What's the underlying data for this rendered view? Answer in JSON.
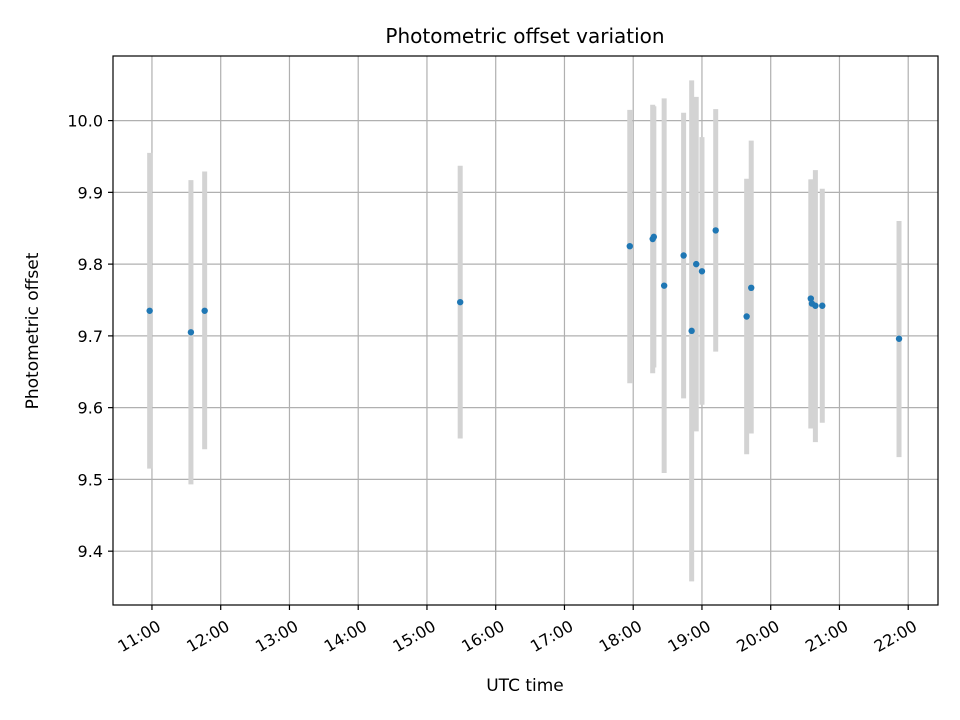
{
  "chart_data": {
    "type": "scatter",
    "title": "Photometric offset variation",
    "xlabel": "UTC time",
    "ylabel": "Photometric offset",
    "xlim": [
      "10:26",
      "22:26"
    ],
    "ylim": [
      9.325,
      10.09
    ],
    "xticks": [
      "11:00",
      "12:00",
      "13:00",
      "14:00",
      "15:00",
      "16:00",
      "17:00",
      "18:00",
      "19:00",
      "20:00",
      "21:00",
      "22:00"
    ],
    "yticks": [
      9.4,
      9.5,
      9.6,
      9.7,
      9.8,
      9.9,
      10.0
    ],
    "ytick_labels": [
      "9.4",
      "9.5",
      "9.6",
      "9.7",
      "9.8",
      "9.9",
      "10.0"
    ],
    "grid": true,
    "point_color": "#1f77b4",
    "errorbar_color": "#d3d3d3",
    "points": [
      {
        "t": "10:58",
        "y": 9.735,
        "lo": 9.515,
        "hi": 9.955
      },
      {
        "t": "11:34",
        "y": 9.705,
        "lo": 9.493,
        "hi": 9.917
      },
      {
        "t": "11:46",
        "y": 9.735,
        "lo": 9.542,
        "hi": 9.929
      },
      {
        "t": "15:29",
        "y": 9.747,
        "lo": 9.557,
        "hi": 9.937
      },
      {
        "t": "17:57",
        "y": 9.825,
        "lo": 9.634,
        "hi": 10.015
      },
      {
        "t": "18:17",
        "y": 9.835,
        "lo": 9.648,
        "hi": 10.022
      },
      {
        "t": "18:18",
        "y": 9.838,
        "lo": 9.656,
        "hi": 10.02
      },
      {
        "t": "18:27",
        "y": 9.77,
        "lo": 9.509,
        "hi": 10.031
      },
      {
        "t": "18:44",
        "y": 9.812,
        "lo": 9.613,
        "hi": 10.011
      },
      {
        "t": "18:51",
        "y": 9.707,
        "lo": 9.358,
        "hi": 10.056
      },
      {
        "t": "18:55",
        "y": 9.8,
        "lo": 9.567,
        "hi": 10.033
      },
      {
        "t": "19:00",
        "y": 9.79,
        "lo": 9.604,
        "hi": 9.977
      },
      {
        "t": "19:12",
        "y": 9.847,
        "lo": 9.678,
        "hi": 10.016
      },
      {
        "t": "19:39",
        "y": 9.727,
        "lo": 9.535,
        "hi": 9.919
      },
      {
        "t": "19:43",
        "y": 9.767,
        "lo": 9.564,
        "hi": 9.972
      },
      {
        "t": "20:35",
        "y": 9.752,
        "lo": 9.571,
        "hi": 9.918
      },
      {
        "t": "20:36",
        "y": 9.745,
        "lo": 9.571,
        "hi": 9.918
      },
      {
        "t": "20:39",
        "y": 9.742,
        "lo": 9.552,
        "hi": 9.931
      },
      {
        "t": "20:45",
        "y": 9.742,
        "lo": 9.579,
        "hi": 9.905
      },
      {
        "t": "21:52",
        "y": 9.696,
        "lo": 9.531,
        "hi": 9.86
      }
    ]
  }
}
